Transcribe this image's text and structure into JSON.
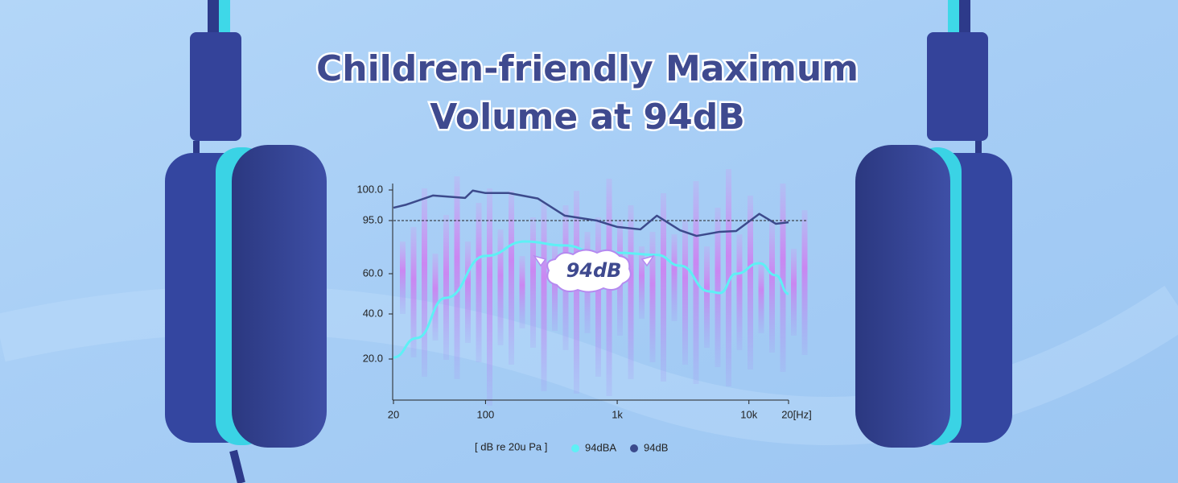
{
  "chart_data": {
    "type": "line",
    "title_lines": [
      "Children-friendly Maximum",
      "Volume at 94dB"
    ],
    "badge": "94dB",
    "unit_label": "[ dB re 20u Pa ]",
    "x_scale": "log",
    "xlim": [
      20,
      20000
    ],
    "xticks": [
      20,
      100,
      {
        "value": 1000,
        "label": "1k"
      },
      {
        "value": 10000,
        "label": "10k"
      },
      {
        "value": 20000,
        "label": "20[Hz]"
      }
    ],
    "ylim": [
      2,
      101
    ],
    "yticks": [
      {
        "value": 20,
        "label": "20.0"
      },
      {
        "value": 40,
        "label": "40.0"
      },
      {
        "value": 60,
        "label": "60.0"
      },
      {
        "value": 95,
        "label": "95.0"
      },
      {
        "value": 100,
        "label": "100.0"
      }
    ],
    "reference_line": 95,
    "series": [
      {
        "name": "94dBA",
        "color": "#5ef0f5",
        "x": [
          20,
          30,
          50,
          100,
          200,
          400,
          700,
          1000,
          2000,
          3000,
          5000,
          6000,
          8000,
          12000,
          16000,
          20000
        ],
        "values": [
          20.7,
          29.3,
          48,
          71.7,
          81.2,
          78.6,
          73.8,
          73.8,
          72.4,
          65.3,
          51.2,
          50.4,
          60,
          66.9,
          59.2,
          50
        ]
      },
      {
        "name": "94dB",
        "color": "#3c4a8c",
        "x": [
          20,
          25,
          40,
          70,
          80,
          100,
          150,
          250,
          400,
          700,
          1000,
          1500,
          2000,
          3000,
          4000,
          6000,
          8000,
          12000,
          16000,
          20000
        ],
        "values": [
          97.1,
          97.6,
          99.1,
          98.7,
          99.9,
          99.5,
          99.5,
          98.6,
          95.8,
          95,
          90.8,
          89.2,
          95.8,
          88.6,
          84.9,
          87.6,
          88.1,
          96.1,
          92.9,
          93.9
        ]
      }
    ]
  }
}
